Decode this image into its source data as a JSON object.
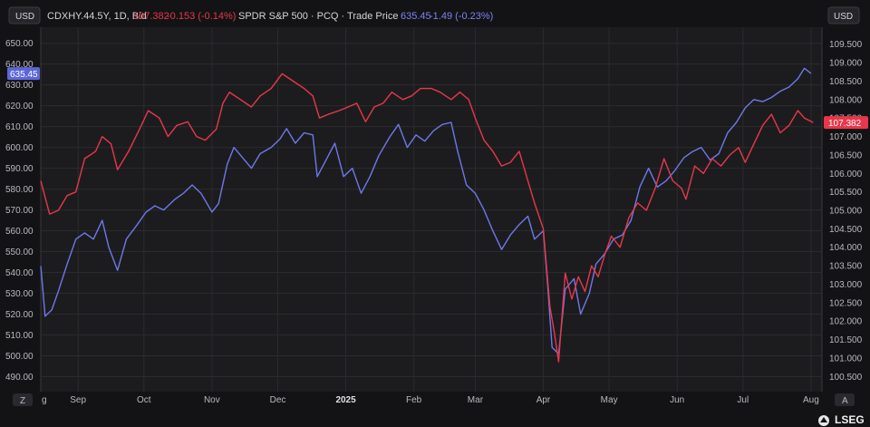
{
  "header": {
    "left_axis_label": "USD",
    "right_axis_label": "USD",
    "series1_name": "CDXHY.44.5Y, 1D, Bid",
    "series1_value": "107.382",
    "series1_change": "-0.153 (-0.14%)",
    "series2_name": "SPDR S&P 500 · PCQ · Trade Price",
    "series2_value": "635.45",
    "series2_change": "-1.49 (-0.23%)"
  },
  "footer": {
    "left_button": "Z",
    "right_button": "A",
    "brand": "LSEG"
  },
  "colors": {
    "background": "#1c1c1f",
    "grid": "#2b2b2f",
    "series1": "#e8374a",
    "series2": "#6f78e8",
    "series1_badge": "#e8374a",
    "series2_badge": "#5b67d8"
  },
  "chart_data": {
    "type": "line",
    "x_tick_labels": [
      "g",
      "Sep",
      "Oct",
      "Nov",
      "Dec",
      "2025",
      "Feb",
      "Mar",
      "Apr",
      "May",
      "Jun",
      "Jul",
      "Aug"
    ],
    "x_tick_dates": [
      "2024-08-15",
      "2024-09-01",
      "2024-10-01",
      "2024-11-01",
      "2024-12-01",
      "2025-01-01",
      "2025-02-01",
      "2025-03-01",
      "2025-04-01",
      "2025-05-01",
      "2025-06-01",
      "2025-07-01",
      "2025-08-01"
    ],
    "x_range": [
      "2024-08-15",
      "2025-08-06"
    ],
    "left_axis": {
      "label": "USD",
      "range": [
        482.8,
        657.7
      ],
      "ticks": [
        490,
        500,
        510,
        520,
        530,
        540,
        550,
        560,
        570,
        580,
        590,
        600,
        610,
        620,
        630,
        640,
        650
      ],
      "tick_labels": [
        "490.00",
        "500.00",
        "510.00",
        "520.00",
        "530.00",
        "540.00",
        "550.00",
        "560.00",
        "570.00",
        "580.00",
        "590.00",
        "600.00",
        "610.00",
        "620.00",
        "630.00",
        "640.00",
        "650.00"
      ]
    },
    "right_axis": {
      "label": "USD",
      "range": [
        100.09,
        109.96
      ],
      "ticks": [
        100.5,
        101,
        101.5,
        102,
        102.5,
        103,
        103.5,
        104,
        104.5,
        105,
        105.5,
        106,
        106.5,
        107,
        107.5,
        108,
        108.5,
        109,
        109.5
      ],
      "tick_labels": [
        "100.500",
        "101.000",
        "101.500",
        "102.000",
        "102.500",
        "103.000",
        "103.500",
        "104.000",
        "104.500",
        "105.000",
        "105.500",
        "106.000",
        "106.500",
        "107.000",
        "107.500",
        "108.000",
        "108.500",
        "109.000",
        "109.500"
      ]
    },
    "grid": true,
    "series": [
      {
        "name": "CDXHY.44.5Y, 1D, Bid",
        "axis": "right",
        "last_value_label": "107.382",
        "points": [
          [
            "2024-08-15",
            105.8
          ],
          [
            "2024-08-19",
            104.9
          ],
          [
            "2024-08-23",
            105.0
          ],
          [
            "2024-08-27",
            105.4
          ],
          [
            "2024-08-31",
            105.5
          ],
          [
            "2024-09-04",
            106.4
          ],
          [
            "2024-09-09",
            106.6
          ],
          [
            "2024-09-12",
            107.0
          ],
          [
            "2024-09-16",
            106.8
          ],
          [
            "2024-09-19",
            106.1
          ],
          [
            "2024-09-24",
            106.6
          ],
          [
            "2024-09-29",
            107.2
          ],
          [
            "2024-10-03",
            107.7
          ],
          [
            "2024-10-08",
            107.5
          ],
          [
            "2024-10-12",
            107.0
          ],
          [
            "2024-10-16",
            107.3
          ],
          [
            "2024-10-21",
            107.4
          ],
          [
            "2024-10-25",
            107.0
          ],
          [
            "2024-10-29",
            106.9
          ],
          [
            "2024-11-03",
            107.2
          ],
          [
            "2024-11-06",
            107.9
          ],
          [
            "2024-11-09",
            108.2
          ],
          [
            "2024-11-14",
            108.0
          ],
          [
            "2024-11-19",
            107.8
          ],
          [
            "2024-11-23",
            108.1
          ],
          [
            "2024-11-28",
            108.3
          ],
          [
            "2024-12-03",
            108.7
          ],
          [
            "2024-12-08",
            108.5
          ],
          [
            "2024-12-13",
            108.3
          ],
          [
            "2024-12-17",
            108.1
          ],
          [
            "2024-12-20",
            107.5
          ],
          [
            "2024-12-24",
            107.6
          ],
          [
            "2024-12-29",
            107.7
          ],
          [
            "2025-01-02",
            107.8
          ],
          [
            "2025-01-06",
            107.9
          ],
          [
            "2025-01-10",
            107.4
          ],
          [
            "2025-01-14",
            107.8
          ],
          [
            "2025-01-18",
            107.9
          ],
          [
            "2025-01-22",
            108.2
          ],
          [
            "2025-01-27",
            108.0
          ],
          [
            "2025-01-31",
            108.1
          ],
          [
            "2025-02-04",
            108.3
          ],
          [
            "2025-02-09",
            108.3
          ],
          [
            "2025-02-13",
            108.2
          ],
          [
            "2025-02-18",
            108.0
          ],
          [
            "2025-02-22",
            108.2
          ],
          [
            "2025-02-26",
            108.0
          ],
          [
            "2025-03-01",
            107.5
          ],
          [
            "2025-03-05",
            106.9
          ],
          [
            "2025-03-09",
            106.6
          ],
          [
            "2025-03-13",
            106.2
          ],
          [
            "2025-03-17",
            106.3
          ],
          [
            "2025-03-21",
            106.6
          ],
          [
            "2025-03-25",
            105.8
          ],
          [
            "2025-03-28",
            105.2
          ],
          [
            "2025-04-01",
            104.5
          ],
          [
            "2025-04-04",
            102.4
          ],
          [
            "2025-04-06",
            101.7
          ],
          [
            "2025-04-08",
            100.9
          ],
          [
            "2025-04-11",
            103.3
          ],
          [
            "2025-04-14",
            102.6
          ],
          [
            "2025-04-17",
            103.2
          ],
          [
            "2025-04-20",
            102.8
          ],
          [
            "2025-04-23",
            103.5
          ],
          [
            "2025-04-26",
            103.2
          ],
          [
            "2025-04-29",
            103.8
          ],
          [
            "2025-05-02",
            104.3
          ],
          [
            "2025-05-06",
            104.0
          ],
          [
            "2025-05-10",
            104.8
          ],
          [
            "2025-05-14",
            105.2
          ],
          [
            "2025-05-18",
            105.0
          ],
          [
            "2025-05-22",
            105.6
          ],
          [
            "2025-05-26",
            106.4
          ],
          [
            "2025-05-30",
            105.8
          ],
          [
            "2025-06-03",
            105.6
          ],
          [
            "2025-06-05",
            105.3
          ],
          [
            "2025-06-09",
            106.2
          ],
          [
            "2025-06-13",
            106.0
          ],
          [
            "2025-06-17",
            106.4
          ],
          [
            "2025-06-21",
            106.2
          ],
          [
            "2025-06-25",
            106.5
          ],
          [
            "2025-06-29",
            106.7
          ],
          [
            "2025-07-02",
            106.3
          ],
          [
            "2025-07-06",
            106.8
          ],
          [
            "2025-07-10",
            107.3
          ],
          [
            "2025-07-14",
            107.6
          ],
          [
            "2025-07-18",
            107.1
          ],
          [
            "2025-07-22",
            107.3
          ],
          [
            "2025-07-26",
            107.7
          ],
          [
            "2025-07-29",
            107.5
          ],
          [
            "2025-08-02",
            107.38
          ]
        ]
      },
      {
        "name": "SPDR S&P 500 · PCQ · Trade Price",
        "axis": "left",
        "last_value_label": "635.45",
        "points": [
          [
            "2024-08-15",
            543
          ],
          [
            "2024-08-17",
            519
          ],
          [
            "2024-08-20",
            522
          ],
          [
            "2024-08-23",
            531
          ],
          [
            "2024-08-27",
            544
          ],
          [
            "2024-08-31",
            556
          ],
          [
            "2024-09-04",
            559
          ],
          [
            "2024-09-08",
            556
          ],
          [
            "2024-09-12",
            565
          ],
          [
            "2024-09-15",
            552
          ],
          [
            "2024-09-19",
            541
          ],
          [
            "2024-09-23",
            556
          ],
          [
            "2024-09-28",
            563
          ],
          [
            "2024-10-02",
            569
          ],
          [
            "2024-10-06",
            572
          ],
          [
            "2024-10-10",
            570
          ],
          [
            "2024-10-15",
            575
          ],
          [
            "2024-10-19",
            578
          ],
          [
            "2024-10-23",
            582
          ],
          [
            "2024-10-27",
            578
          ],
          [
            "2024-11-01",
            569
          ],
          [
            "2024-11-04",
            573
          ],
          [
            "2024-11-08",
            592
          ],
          [
            "2024-11-11",
            600
          ],
          [
            "2024-11-15",
            595
          ],
          [
            "2024-11-19",
            590
          ],
          [
            "2024-11-23",
            597
          ],
          [
            "2024-11-28",
            600
          ],
          [
            "2024-12-02",
            604
          ],
          [
            "2024-12-05",
            609
          ],
          [
            "2024-12-09",
            602
          ],
          [
            "2024-12-13",
            607
          ],
          [
            "2024-12-17",
            606
          ],
          [
            "2024-12-19",
            586
          ],
          [
            "2024-12-23",
            594
          ],
          [
            "2024-12-27",
            602
          ],
          [
            "2024-12-31",
            586
          ],
          [
            "2025-01-04",
            590
          ],
          [
            "2025-01-08",
            578
          ],
          [
            "2025-01-12",
            586
          ],
          [
            "2025-01-16",
            596
          ],
          [
            "2025-01-21",
            605
          ],
          [
            "2025-01-25",
            611
          ],
          [
            "2025-01-29",
            600
          ],
          [
            "2025-02-02",
            606
          ],
          [
            "2025-02-06",
            603
          ],
          [
            "2025-02-10",
            608
          ],
          [
            "2025-02-14",
            611
          ],
          [
            "2025-02-18",
            612
          ],
          [
            "2025-02-21",
            598
          ],
          [
            "2025-02-25",
            582
          ],
          [
            "2025-03-01",
            578
          ],
          [
            "2025-03-05",
            570
          ],
          [
            "2025-03-09",
            560
          ],
          [
            "2025-03-13",
            551
          ],
          [
            "2025-03-17",
            558
          ],
          [
            "2025-03-21",
            563
          ],
          [
            "2025-03-25",
            567
          ],
          [
            "2025-03-28",
            556
          ],
          [
            "2025-04-01",
            560
          ],
          [
            "2025-04-03",
            534
          ],
          [
            "2025-04-05",
            504
          ],
          [
            "2025-04-08",
            501
          ],
          [
            "2025-04-11",
            532
          ],
          [
            "2025-04-15",
            537
          ],
          [
            "2025-04-18",
            520
          ],
          [
            "2025-04-22",
            530
          ],
          [
            "2025-04-25",
            544
          ],
          [
            "2025-04-29",
            549
          ],
          [
            "2025-05-03",
            556
          ],
          [
            "2025-05-07",
            558
          ],
          [
            "2025-05-11",
            565
          ],
          [
            "2025-05-15",
            581
          ],
          [
            "2025-05-19",
            590
          ],
          [
            "2025-05-23",
            581
          ],
          [
            "2025-05-27",
            584
          ],
          [
            "2025-05-31",
            589
          ],
          [
            "2025-06-04",
            595
          ],
          [
            "2025-06-08",
            598
          ],
          [
            "2025-06-12",
            600
          ],
          [
            "2025-06-16",
            594
          ],
          [
            "2025-06-20",
            597
          ],
          [
            "2025-06-24",
            607
          ],
          [
            "2025-06-28",
            612
          ],
          [
            "2025-07-02",
            619
          ],
          [
            "2025-07-06",
            623
          ],
          [
            "2025-07-10",
            622
          ],
          [
            "2025-07-14",
            624
          ],
          [
            "2025-07-18",
            627
          ],
          [
            "2025-07-22",
            629
          ],
          [
            "2025-07-26",
            633
          ],
          [
            "2025-07-29",
            638
          ],
          [
            "2025-08-01",
            635.45
          ]
        ]
      }
    ]
  }
}
